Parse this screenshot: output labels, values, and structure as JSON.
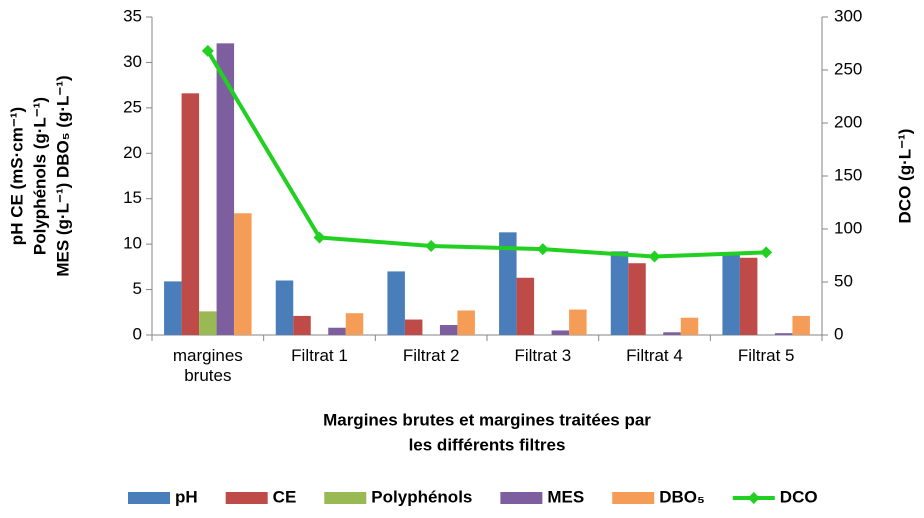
{
  "chart_data": {
    "type": "bar",
    "categories": [
      "margines brutes",
      "Filtrat 1",
      "Filtrat 2",
      "Filtrat 3",
      "Filtrat 4",
      "Filtrat 5"
    ],
    "series": [
      {
        "name": "pH",
        "color": "#4a7ebb",
        "values": [
          5.9,
          6.0,
          7.0,
          11.3,
          9.2,
          8.8
        ]
      },
      {
        "name": "CE",
        "color": "#be4b48",
        "values": [
          26.6,
          2.1,
          1.7,
          6.3,
          7.9,
          8.5
        ]
      },
      {
        "name": "Polyphénols",
        "color": "#98b954",
        "values": [
          2.6,
          0,
          0,
          0,
          0,
          0
        ]
      },
      {
        "name": "MES",
        "color": "#7d5fa0",
        "values": [
          32.1,
          0.8,
          1.1,
          0.5,
          0.3,
          0.2
        ]
      },
      {
        "name": "DBO₅",
        "color": "#f59d56",
        "values": [
          13.4,
          2.4,
          2.7,
          2.8,
          1.9,
          2.1
        ]
      },
      {
        "name": "DCO",
        "color": "#22d022",
        "type": "line",
        "axis": "y2",
        "values": [
          268,
          92,
          84,
          81,
          74,
          78
        ]
      }
    ],
    "ylim": [
      0,
      35
    ],
    "yticks": [
      0,
      5,
      10,
      15,
      20,
      25,
      30,
      35
    ],
    "y2lim": [
      0,
      300
    ],
    "y2ticks": [
      0,
      50,
      100,
      150,
      200,
      250,
      300
    ],
    "y_label": [
      "pH CE (mS·cm⁻¹)",
      "Polyphénols (g·L⁻¹)",
      "MES (g·L⁻¹)  DBO₅ (g·L⁻¹)"
    ],
    "y2_label": "DCO (g·L⁻¹)",
    "x_label": [
      "Margines brutes et margines traitées par",
      "les différents filtres"
    ],
    "grid": false,
    "legend": "bottom"
  }
}
